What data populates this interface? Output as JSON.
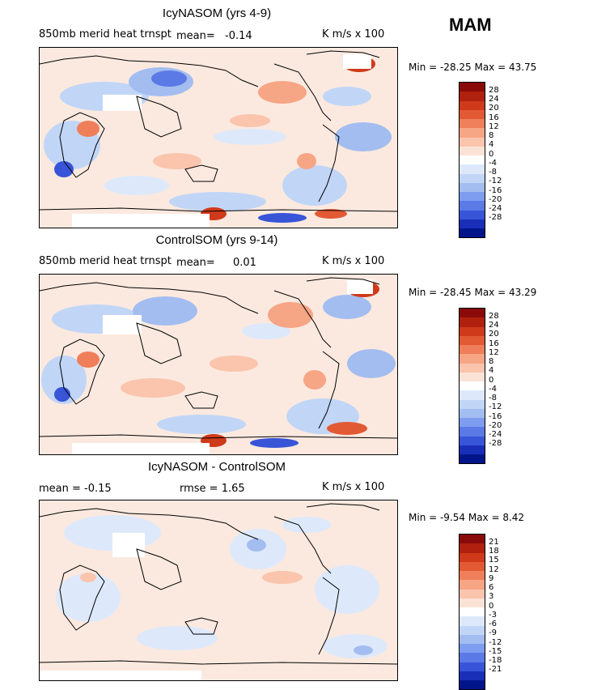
{
  "season": "MAM",
  "panels": [
    {
      "title": "IcyNASOM (yrs 4-9)",
      "variable": "850mb merid heat trnspt",
      "mean_label": "mean=",
      "mean_value": "-0.14",
      "units": "K m/s x 100",
      "minmax": "Min = -28.25 Max =  43.75",
      "ticks": [
        "28",
        "24",
        "20",
        "16",
        "12",
        "8",
        "4",
        "0",
        "-4",
        "-8",
        "-12",
        "-16",
        "-20",
        "-24",
        "-28"
      ]
    },
    {
      "title": "ControlSOM (yrs 9-14)",
      "variable": "850mb merid heat trnspt",
      "mean_label": "mean=",
      "mean_value": "0.01",
      "units": "K m/s x 100",
      "minmax": "Min = -28.45 Max =  43.29",
      "ticks": [
        "28",
        "24",
        "20",
        "16",
        "12",
        "8",
        "4",
        "0",
        "-4",
        "-8",
        "-12",
        "-16",
        "-20",
        "-24",
        "-28"
      ]
    },
    {
      "title": "IcyNASOM - ControlSOM",
      "mean_text": "mean =   -0.15",
      "rmse_text": "rmse =    1.65",
      "units": "K m/s x 100",
      "minmax": "Min =  -9.54 Max =    8.42",
      "ticks": [
        "21",
        "18",
        "15",
        "12",
        "9",
        "6",
        "3",
        "0",
        "-3",
        "-6",
        "-9",
        "-12",
        "-15",
        "-18",
        "-21"
      ]
    }
  ],
  "colorbar_colors": [
    "#8a0a0a",
    "#b0200e",
    "#cf3a1a",
    "#e25a34",
    "#ee7f5a",
    "#f6a585",
    "#fac4ad",
    "#fbe2d6",
    "#ffffff",
    "#dde9fb",
    "#c1d6f6",
    "#a3bdf0",
    "#7f9df0",
    "#5b7ae6",
    "#3855d8",
    "#1a2fb8",
    "#00158a"
  ],
  "colors": {
    "warm_light": "#fbe2d6",
    "warm_mid": "#f6a585",
    "warm_strong": "#cf3a1a",
    "cool_light": "#dde9fb",
    "cool_mid": "#a3bdf0",
    "cool_strong": "#3855d8"
  }
}
